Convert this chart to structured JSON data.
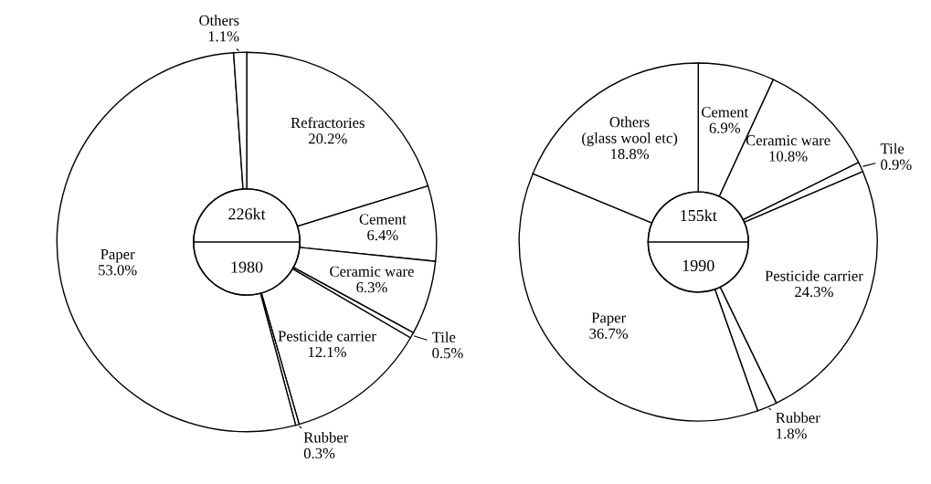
{
  "chart_data": [
    {
      "type": "donut",
      "categories": [
        "Refractories",
        "Cement",
        "Ceramic ware",
        "Tile",
        "Pesticide carrier",
        "Rubber",
        "Paper",
        "Others"
      ],
      "values": [
        20.2,
        6.4,
        6.3,
        0.5,
        12.1,
        0.3,
        53.0,
        1.1
      ],
      "value_labels": [
        "20.2%",
        "6.4%",
        "6.3%",
        "0.5%",
        "12.1%",
        "0.3%",
        "53.0%",
        "1.1%"
      ],
      "colors": [
        "#ffffff",
        "#ffffff",
        "#ffffff",
        "#ffffff",
        "#ffffff",
        "#ffffff",
        "#ffffff",
        "#ffffff"
      ],
      "annotations": [
        "226kt",
        "1980"
      ]
    },
    {
      "type": "donut",
      "categories": [
        "Cement",
        "Ceramic ware",
        "Tile",
        "Pesticide carrier",
        "Rubber",
        "Paper",
        "Others\n(glass wool etc)"
      ],
      "values": [
        6.9,
        10.8,
        0.9,
        24.3,
        1.8,
        36.7,
        18.8
      ],
      "value_labels": [
        "6.9%",
        "10.8%",
        "0.9%",
        "24.3%",
        "1.8%",
        "36.7%",
        "18.8%"
      ],
      "colors": [
        "#ffffff",
        "#ffffff",
        "#ffffff",
        "#ffffff",
        "#ffffff",
        "#ffffff",
        "#ffffff"
      ],
      "annotations": [
        "155kt",
        "1990"
      ]
    }
  ]
}
